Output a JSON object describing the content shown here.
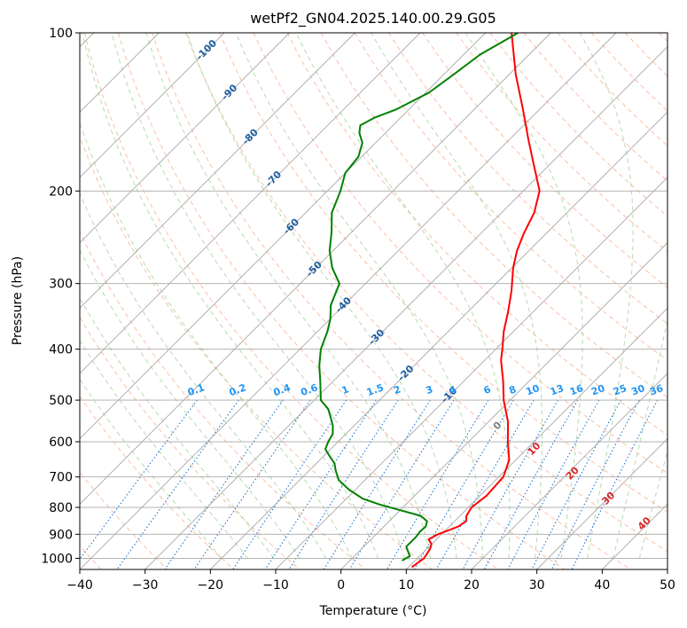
{
  "chart_data": {
    "type": "skew-t",
    "title": "wetPf2_GN04.2025.140.00.29.G05",
    "xlabel": "Temperature (°C)",
    "ylabel": "Pressure (hPa)",
    "xlim": [
      -40,
      50
    ],
    "ylim": [
      1050,
      100
    ],
    "y_scale": "log",
    "grid": true,
    "x_ticks": [
      -40,
      -30,
      -20,
      -10,
      0,
      10,
      20,
      30,
      40,
      50
    ],
    "x_tick_labels": [
      "−40",
      "−30",
      "−20",
      "−10",
      "0",
      "10",
      "20",
      "30",
      "40",
      "50"
    ],
    "y_ticks": [
      100,
      200,
      300,
      400,
      500,
      600,
      700,
      800,
      900,
      1000
    ],
    "y_tick_labels": [
      "100",
      "200",
      "300",
      "400",
      "500",
      "600",
      "700",
      "800",
      "900",
      "1000"
    ],
    "series": [
      {
        "color": "#ff0000",
        "points": [
          [
            1040,
            10.5
          ],
          [
            1000,
            11
          ],
          [
            960,
            10.5
          ],
          [
            940,
            10.0
          ],
          [
            920,
            8.8
          ],
          [
            900,
            9.5
          ],
          [
            870,
            11.4
          ],
          [
            850,
            11.8
          ],
          [
            830,
            11.0
          ],
          [
            800,
            10.5
          ],
          [
            760,
            11.0
          ],
          [
            700,
            10.7
          ],
          [
            650,
            9.0
          ],
          [
            600,
            6.0
          ],
          [
            550,
            3.0
          ],
          [
            500,
            -1.0
          ],
          [
            460,
            -4.0
          ],
          [
            420,
            -7.5
          ],
          [
            400,
            -9.0
          ],
          [
            370,
            -11.5
          ],
          [
            340,
            -13.8
          ],
          [
            310,
            -16.5
          ],
          [
            280,
            -19.8
          ],
          [
            260,
            -21.8
          ],
          [
            240,
            -23.5
          ],
          [
            220,
            -25.0
          ],
          [
            200,
            -27.5
          ],
          [
            180,
            -32.0
          ],
          [
            160,
            -37.0
          ],
          [
            140,
            -42.5
          ],
          [
            120,
            -49.0
          ],
          [
            100,
            -56.0
          ]
        ]
      },
      {
        "color": "#008000",
        "points": [
          [
            1010,
            8.0
          ],
          [
            990,
            8.5
          ],
          [
            970,
            7.5
          ],
          [
            950,
            6.5
          ],
          [
            930,
            6.5
          ],
          [
            910,
            6.5
          ],
          [
            890,
            6.3
          ],
          [
            870,
            6.4
          ],
          [
            850,
            5.8
          ],
          [
            830,
            4.0
          ],
          [
            810,
            0.0
          ],
          [
            790,
            -4.0
          ],
          [
            770,
            -7.5
          ],
          [
            740,
            -11.0
          ],
          [
            710,
            -14.0
          ],
          [
            680,
            -16.0
          ],
          [
            660,
            -17.2
          ],
          [
            640,
            -19.0
          ],
          [
            620,
            -20.8
          ],
          [
            600,
            -21.5
          ],
          [
            580,
            -22.0
          ],
          [
            560,
            -23.2
          ],
          [
            540,
            -24.8
          ],
          [
            520,
            -26.5
          ],
          [
            500,
            -29.0
          ],
          [
            460,
            -32.0
          ],
          [
            430,
            -34.5
          ],
          [
            400,
            -36.8
          ],
          [
            370,
            -38.5
          ],
          [
            350,
            -40.0
          ],
          [
            330,
            -42.0
          ],
          [
            300,
            -44.0
          ],
          [
            280,
            -47.5
          ],
          [
            260,
            -50.5
          ],
          [
            240,
            -53.0
          ],
          [
            220,
            -56.0
          ],
          [
            200,
            -58.0
          ],
          [
            185,
            -60.0
          ],
          [
            172,
            -60.5
          ],
          [
            162,
            -62.0
          ],
          [
            155,
            -64.0
          ],
          [
            150,
            -65.0
          ],
          [
            145,
            -64.0
          ],
          [
            140,
            -62.0
          ],
          [
            130,
            -59.5
          ],
          [
            120,
            -58.5
          ],
          [
            110,
            -57.5
          ],
          [
            100,
            -55.0
          ]
        ]
      }
    ],
    "isotherm_labels": [
      "-100",
      "-90",
      "-80",
      "-70",
      "-60",
      "-50",
      "-40",
      "-30",
      "-20",
      "-10"
    ],
    "mixing_ratio_labels": [
      "0.1",
      "0.2",
      "0.4",
      "0.6",
      "1",
      "1.5",
      "2",
      "3",
      "4",
      "6",
      "8",
      "10",
      "13",
      "16",
      "20",
      "25",
      "30",
      "36"
    ],
    "moist_adiabat_labels": [
      "0",
      "10",
      "20",
      "30",
      "40"
    ]
  },
  "colors": {
    "temperature": "#ff0000",
    "dewpoint": "#008000",
    "isotherm": "#a8a8a8",
    "dry_adiabat": "#f8a98a",
    "moist_adiabat": "#9ccf93",
    "mixing_ratio": "#1f77d4",
    "mixing_label": "#2196f3",
    "isotherm_label": "#1f5fa0",
    "moist_label": "#d62728",
    "zero_label": "#808080"
  }
}
